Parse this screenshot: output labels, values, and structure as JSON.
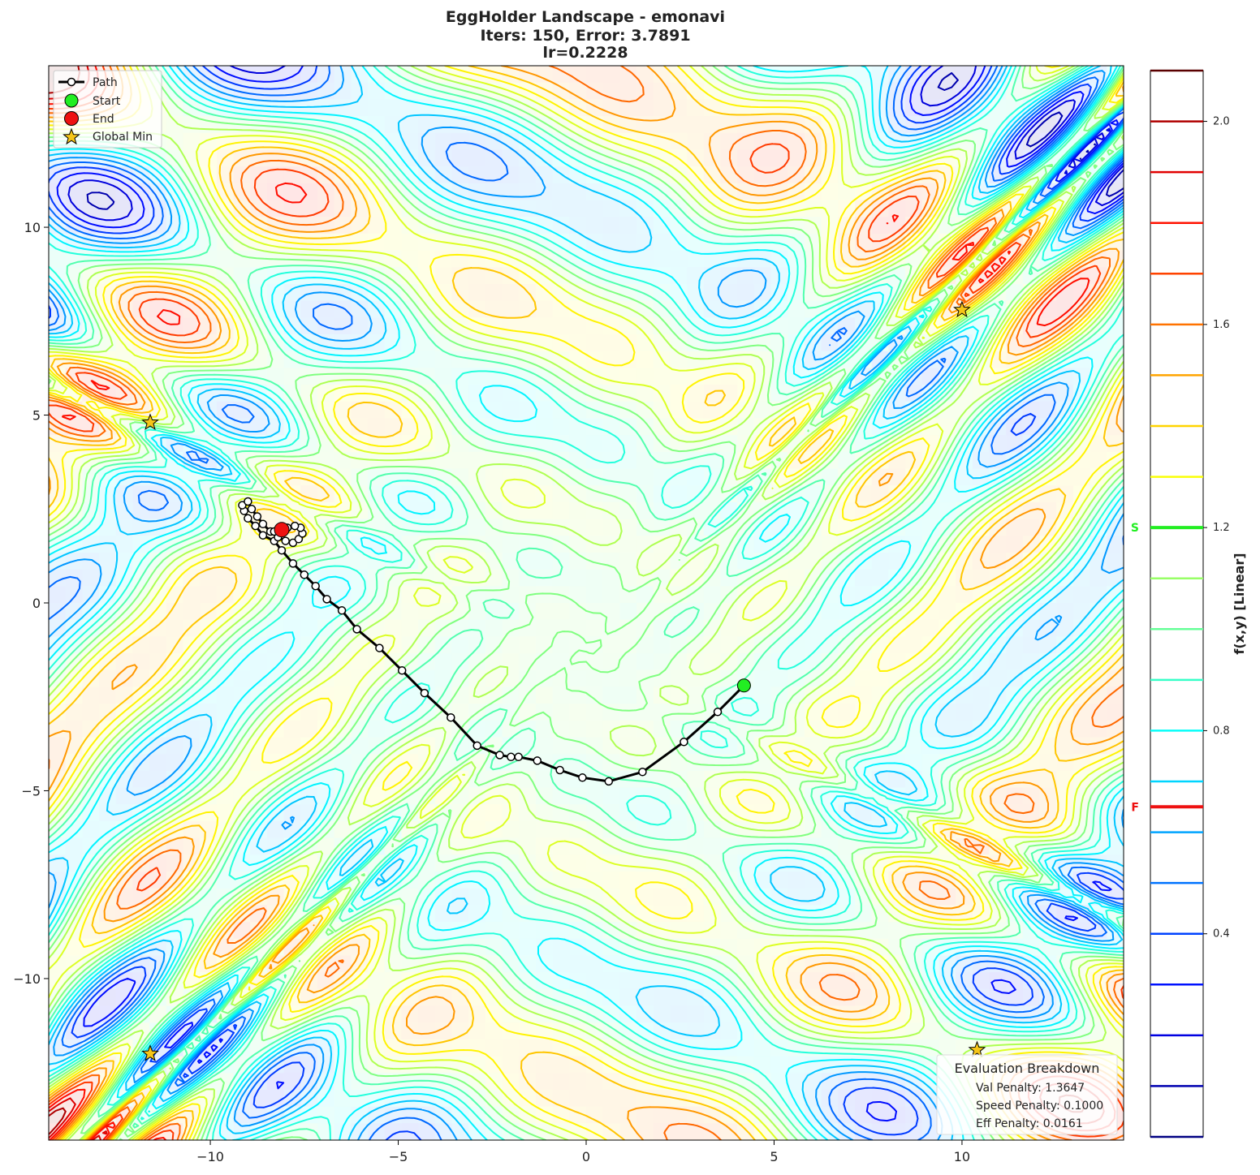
{
  "chart_data": {
    "type": "line",
    "title_lines": [
      "EggHolder Landscape - emonavi",
      "Iters: 150, Error: 3.7891",
      "lr=0.2228"
    ],
    "xlim": [
      -14.3,
      14.3
    ],
    "ylim": [
      -14.3,
      14.3
    ],
    "x_ticks": [
      -10,
      -5,
      0,
      5,
      10
    ],
    "y_ticks": [
      -10,
      -5,
      0,
      5,
      10
    ],
    "x_tick_labels": [
      "−10",
      "−5",
      "0",
      "5",
      "10"
    ],
    "y_tick_labels": [
      "−10",
      "−5",
      "0",
      "5",
      "10"
    ],
    "grid": false,
    "legend_position": "top-left",
    "legend": [
      {
        "label": "Path",
        "kind": "path"
      },
      {
        "label": "Start",
        "kind": "start"
      },
      {
        "label": "End",
        "kind": "end"
      },
      {
        "label": "Global Min",
        "kind": "star"
      }
    ],
    "path": [
      [
        4.2,
        -2.2
      ],
      [
        3.5,
        -2.9
      ],
      [
        2.6,
        -3.7
      ],
      [
        1.5,
        -4.5
      ],
      [
        0.6,
        -4.75
      ],
      [
        -0.1,
        -4.65
      ],
      [
        -0.7,
        -4.45
      ],
      [
        -1.3,
        -4.2
      ],
      [
        -1.8,
        -4.1
      ],
      [
        -2.0,
        -4.1
      ],
      [
        -2.3,
        -4.05
      ],
      [
        -2.9,
        -3.8
      ],
      [
        -3.6,
        -3.05
      ],
      [
        -4.3,
        -2.4
      ],
      [
        -4.9,
        -1.8
      ],
      [
        -5.5,
        -1.2
      ],
      [
        -6.1,
        -0.7
      ],
      [
        -6.5,
        -0.2
      ],
      [
        -6.9,
        0.1
      ],
      [
        -7.2,
        0.45
      ],
      [
        -7.5,
        0.75
      ],
      [
        -7.8,
        1.05
      ],
      [
        -8.1,
        1.4
      ],
      [
        -8.3,
        1.65
      ],
      [
        -8.6,
        1.8
      ],
      [
        -8.8,
        2.05
      ],
      [
        -9.0,
        2.25
      ],
      [
        -9.1,
        2.45
      ],
      [
        -9.15,
        2.6
      ],
      [
        -9.0,
        2.7
      ],
      [
        -8.9,
        2.5
      ],
      [
        -8.75,
        2.3
      ],
      [
        -8.6,
        2.1
      ],
      [
        -8.4,
        1.9
      ],
      [
        -8.2,
        1.75
      ],
      [
        -8.0,
        1.65
      ],
      [
        -7.8,
        1.6
      ],
      [
        -7.65,
        1.7
      ],
      [
        -7.55,
        1.85
      ],
      [
        -7.6,
        2.0
      ],
      [
        -7.75,
        2.05
      ],
      [
        -7.95,
        2.0
      ],
      [
        -8.15,
        1.95
      ],
      [
        -8.3,
        1.9
      ],
      [
        -8.1,
        1.95
      ]
    ],
    "start": [
      4.2,
      -2.2
    ],
    "end": [
      -8.1,
      1.95
    ],
    "global_min": [
      [
        -11.6,
        4.8
      ],
      [
        -11.6,
        -12.0
      ],
      [
        10.0,
        7.8
      ],
      [
        10.4,
        -11.9
      ]
    ],
    "colorbar": {
      "label": "f(x,y) [Linear]",
      "range": [
        0.0,
        2.1
      ],
      "ticks": [
        0.4,
        0.8,
        1.2,
        1.6,
        2.0
      ],
      "tick_labels": [
        "0.4",
        "0.8",
        "1.2",
        "1.6",
        "2.0"
      ],
      "markers": [
        {
          "label": "S",
          "value": 1.2,
          "color": "#22ee22"
        },
        {
          "label": "F",
          "value": 0.65,
          "color": "#ee1111"
        }
      ]
    },
    "breakdown": {
      "title": "Evaluation Breakdown",
      "lines": [
        "Val Penalty: 1.3647",
        "Speed Penalty: 0.1000",
        "Eff Penalty: 0.0161"
      ]
    },
    "colors": {
      "path": "#000000",
      "start": "#22ee22",
      "end": "#ee1111",
      "star": "#f5c518"
    }
  }
}
